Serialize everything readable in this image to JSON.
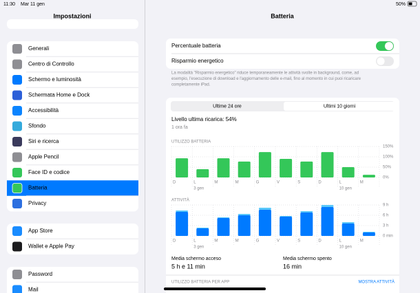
{
  "status_bar": {
    "time": "11:30",
    "date": "Mar 11 gen",
    "battery": "50%"
  },
  "sidebar": {
    "title": "Impostazioni",
    "groups": [
      [
        {
          "label": "Generali",
          "icon_color": "#8e8e93"
        },
        {
          "label": "Centro di Controllo",
          "icon_color": "#8e8e93"
        },
        {
          "label": "Schermo e luminosità",
          "icon_color": "#007aff"
        },
        {
          "label": "Schermata Home e Dock",
          "icon_color": "#2c5fd8"
        },
        {
          "label": "Accessibilità",
          "icon_color": "#0a84ff"
        },
        {
          "label": "Sfondo",
          "icon_color": "#34aadc"
        },
        {
          "label": "Siri e ricerca",
          "icon_color": "#3a3a5c"
        },
        {
          "label": "Apple Pencil",
          "icon_color": "#8e8e93"
        },
        {
          "label": "Face ID e codice",
          "icon_color": "#34c759"
        },
        {
          "label": "Batteria",
          "icon_color": "#34c759",
          "selected": true
        },
        {
          "label": "Privacy",
          "icon_color": "#2c6fe0"
        }
      ],
      [
        {
          "label": "App Store",
          "icon_color": "#1a8cff"
        },
        {
          "label": "Wallet e Apple Pay",
          "icon_color": "#1c1c1e"
        }
      ],
      [
        {
          "label": "Password",
          "icon_color": "#8e8e93"
        },
        {
          "label": "Mail",
          "icon_color": "#1a8cff"
        }
      ]
    ]
  },
  "detail": {
    "title": "Batteria",
    "settings": [
      {
        "label": "Percentuale batteria",
        "on": true
      },
      {
        "label": "Risparmio energetico",
        "on": false
      }
    ],
    "footnote": [
      "La modalità \"Risparmio energetico\" riduce temporaneamente le attività svolte in background, come, ad",
      "esempio, l'esecuzione di download e l'aggiornamento delle e-mail, fino al momento in cui puoi ricaricare",
      "completamente iPad."
    ],
    "segments": [
      {
        "label": "Ultime 24 ore",
        "selected": false
      },
      {
        "label": "Ultimi 10 giorni",
        "selected": true
      }
    ],
    "last_charge": "Livello ultima ricarica: 54%",
    "last_charge_time": "1 ora fa",
    "usage_chart": {
      "type": "bar",
      "title": "UTILIZZO BATTERIA",
      "categories": [
        "D",
        "L",
        "M",
        "M",
        "G",
        "V",
        "S",
        "D",
        "L",
        "M"
      ],
      "date_labels": [
        null,
        "3 gen",
        null,
        null,
        null,
        null,
        null,
        null,
        "10 gen",
        null
      ],
      "series": [
        {
          "color": "#34c759",
          "values": [
            93,
            40,
            93,
            77,
            123,
            90,
            77,
            123,
            50,
            13
          ]
        }
      ],
      "ylim": [
        0,
        150
      ],
      "yticks": [
        {
          "value": 0,
          "label": "0%"
        },
        {
          "value": 50,
          "label": "50%"
        },
        {
          "value": 100,
          "label": "100%"
        },
        {
          "value": 150,
          "label": "150%"
        }
      ],
      "grid": true
    },
    "activity_chart": {
      "type": "bar",
      "title": "ATTIVITÀ",
      "categories": [
        "D",
        "L",
        "M",
        "M",
        "G",
        "V",
        "S",
        "D",
        "L",
        "M"
      ],
      "date_labels": [
        null,
        "3 gen",
        null,
        null,
        null,
        null,
        null,
        null,
        "10 gen",
        null
      ],
      "series": [
        {
          "name": "Media schermo acceso",
          "average": "5 h e 11 min",
          "color": "#007aff",
          "values": [
            7,
            2.2,
            5.2,
            6,
            7.6,
            5.6,
            6.8,
            8.4,
            3.6,
            1
          ]
        },
        {
          "name": "Media schermo spento",
          "average": "16 min",
          "color": "#5ac8fa",
          "values": [
            0.4,
            0.2,
            0.2,
            0.4,
            0.6,
            0.2,
            0.4,
            0.6,
            0.4,
            0.2
          ]
        }
      ],
      "ylim": [
        0,
        9
      ],
      "yticks": [
        {
          "value": 0,
          "label": "0 min"
        },
        {
          "value": 3,
          "label": "3 h"
        },
        {
          "value": 6,
          "label": "6 h"
        },
        {
          "value": 9,
          "label": "9 h"
        }
      ],
      "grid": true
    },
    "per_app_title": "UTILIZZO BATTERIA PER APP",
    "show_activity": "MOSTRA ATTIVITÀ"
  }
}
